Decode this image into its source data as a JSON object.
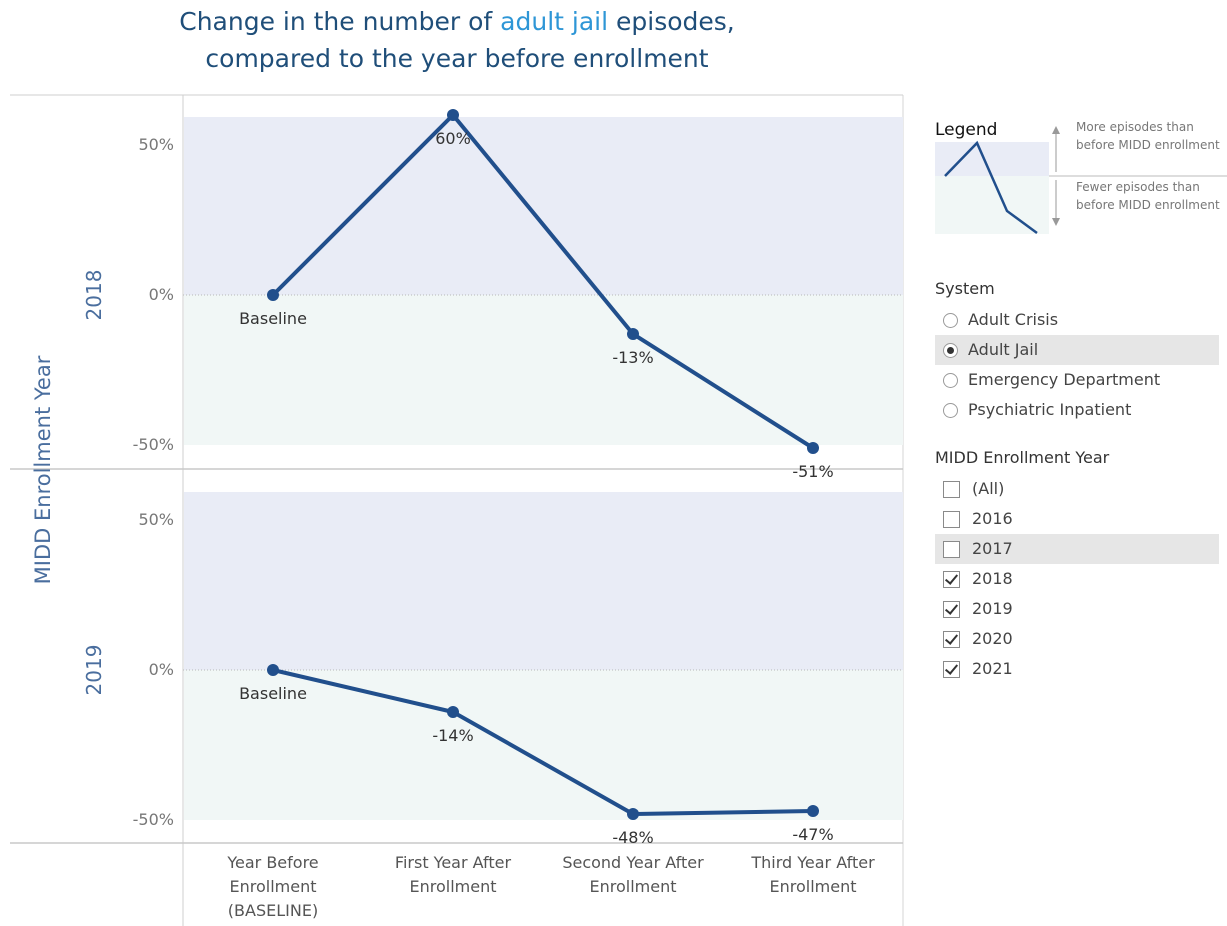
{
  "title": {
    "line1_before": "Change in the number of ",
    "line1_highlight": "adult jail",
    "line1_after": " episodes,",
    "line2": "compared to the year before enrollment"
  },
  "colors": {
    "line": "#214f8c",
    "highlight_text": "#2e96d6",
    "band_positive": "#e9ecf6",
    "band_negative": "#f1f7f6",
    "row_label": "#4a6e9e"
  },
  "chart_data": {
    "type": "line",
    "row_axis_title": "MIDD Enrollment Year",
    "categories": [
      "Year Before\nEnrollment\n(BASELINE)",
      "First Year After\nEnrollment",
      "Second Year After\nEnrollment",
      "Third Year After\nEnrollment"
    ],
    "y_ticks": [
      "50%",
      "0%",
      "-50%"
    ],
    "y_tick_values": [
      50,
      0,
      -50
    ],
    "ylim": [
      -60,
      60
    ],
    "panels": [
      {
        "row_label": "2018",
        "values": [
          0,
          60,
          -13,
          -51
        ],
        "labels": [
          "Baseline",
          "60%",
          "-13%",
          "-51%"
        ]
      },
      {
        "row_label": "2019",
        "values": [
          0,
          -14,
          -48,
          -47
        ],
        "labels": [
          "Baseline",
          "-14%",
          "-48%",
          "-47%"
        ]
      }
    ]
  },
  "legend": {
    "title": "Legend",
    "upper_note": "More episodes than before MIDD enrollment",
    "lower_note": "Fewer episodes than before MIDD enrollment"
  },
  "system": {
    "title": "System",
    "options": [
      {
        "label": "Adult Crisis",
        "selected": false,
        "highlighted": false
      },
      {
        "label": "Adult Jail",
        "selected": true,
        "highlighted": true
      },
      {
        "label": "Emergency Department",
        "selected": false,
        "highlighted": false
      },
      {
        "label": "Psychiatric Inpatient",
        "selected": false,
        "highlighted": false
      }
    ]
  },
  "enrollment_year": {
    "title": "MIDD Enrollment Year",
    "options": [
      {
        "label": "(All)",
        "checked": false,
        "highlighted": false
      },
      {
        "label": "2016",
        "checked": false,
        "highlighted": false
      },
      {
        "label": "2017",
        "checked": false,
        "highlighted": true
      },
      {
        "label": "2018",
        "checked": true,
        "highlighted": false
      },
      {
        "label": "2019",
        "checked": true,
        "highlighted": false
      },
      {
        "label": "2020",
        "checked": true,
        "highlighted": false
      },
      {
        "label": "2021",
        "checked": true,
        "highlighted": false
      }
    ]
  }
}
